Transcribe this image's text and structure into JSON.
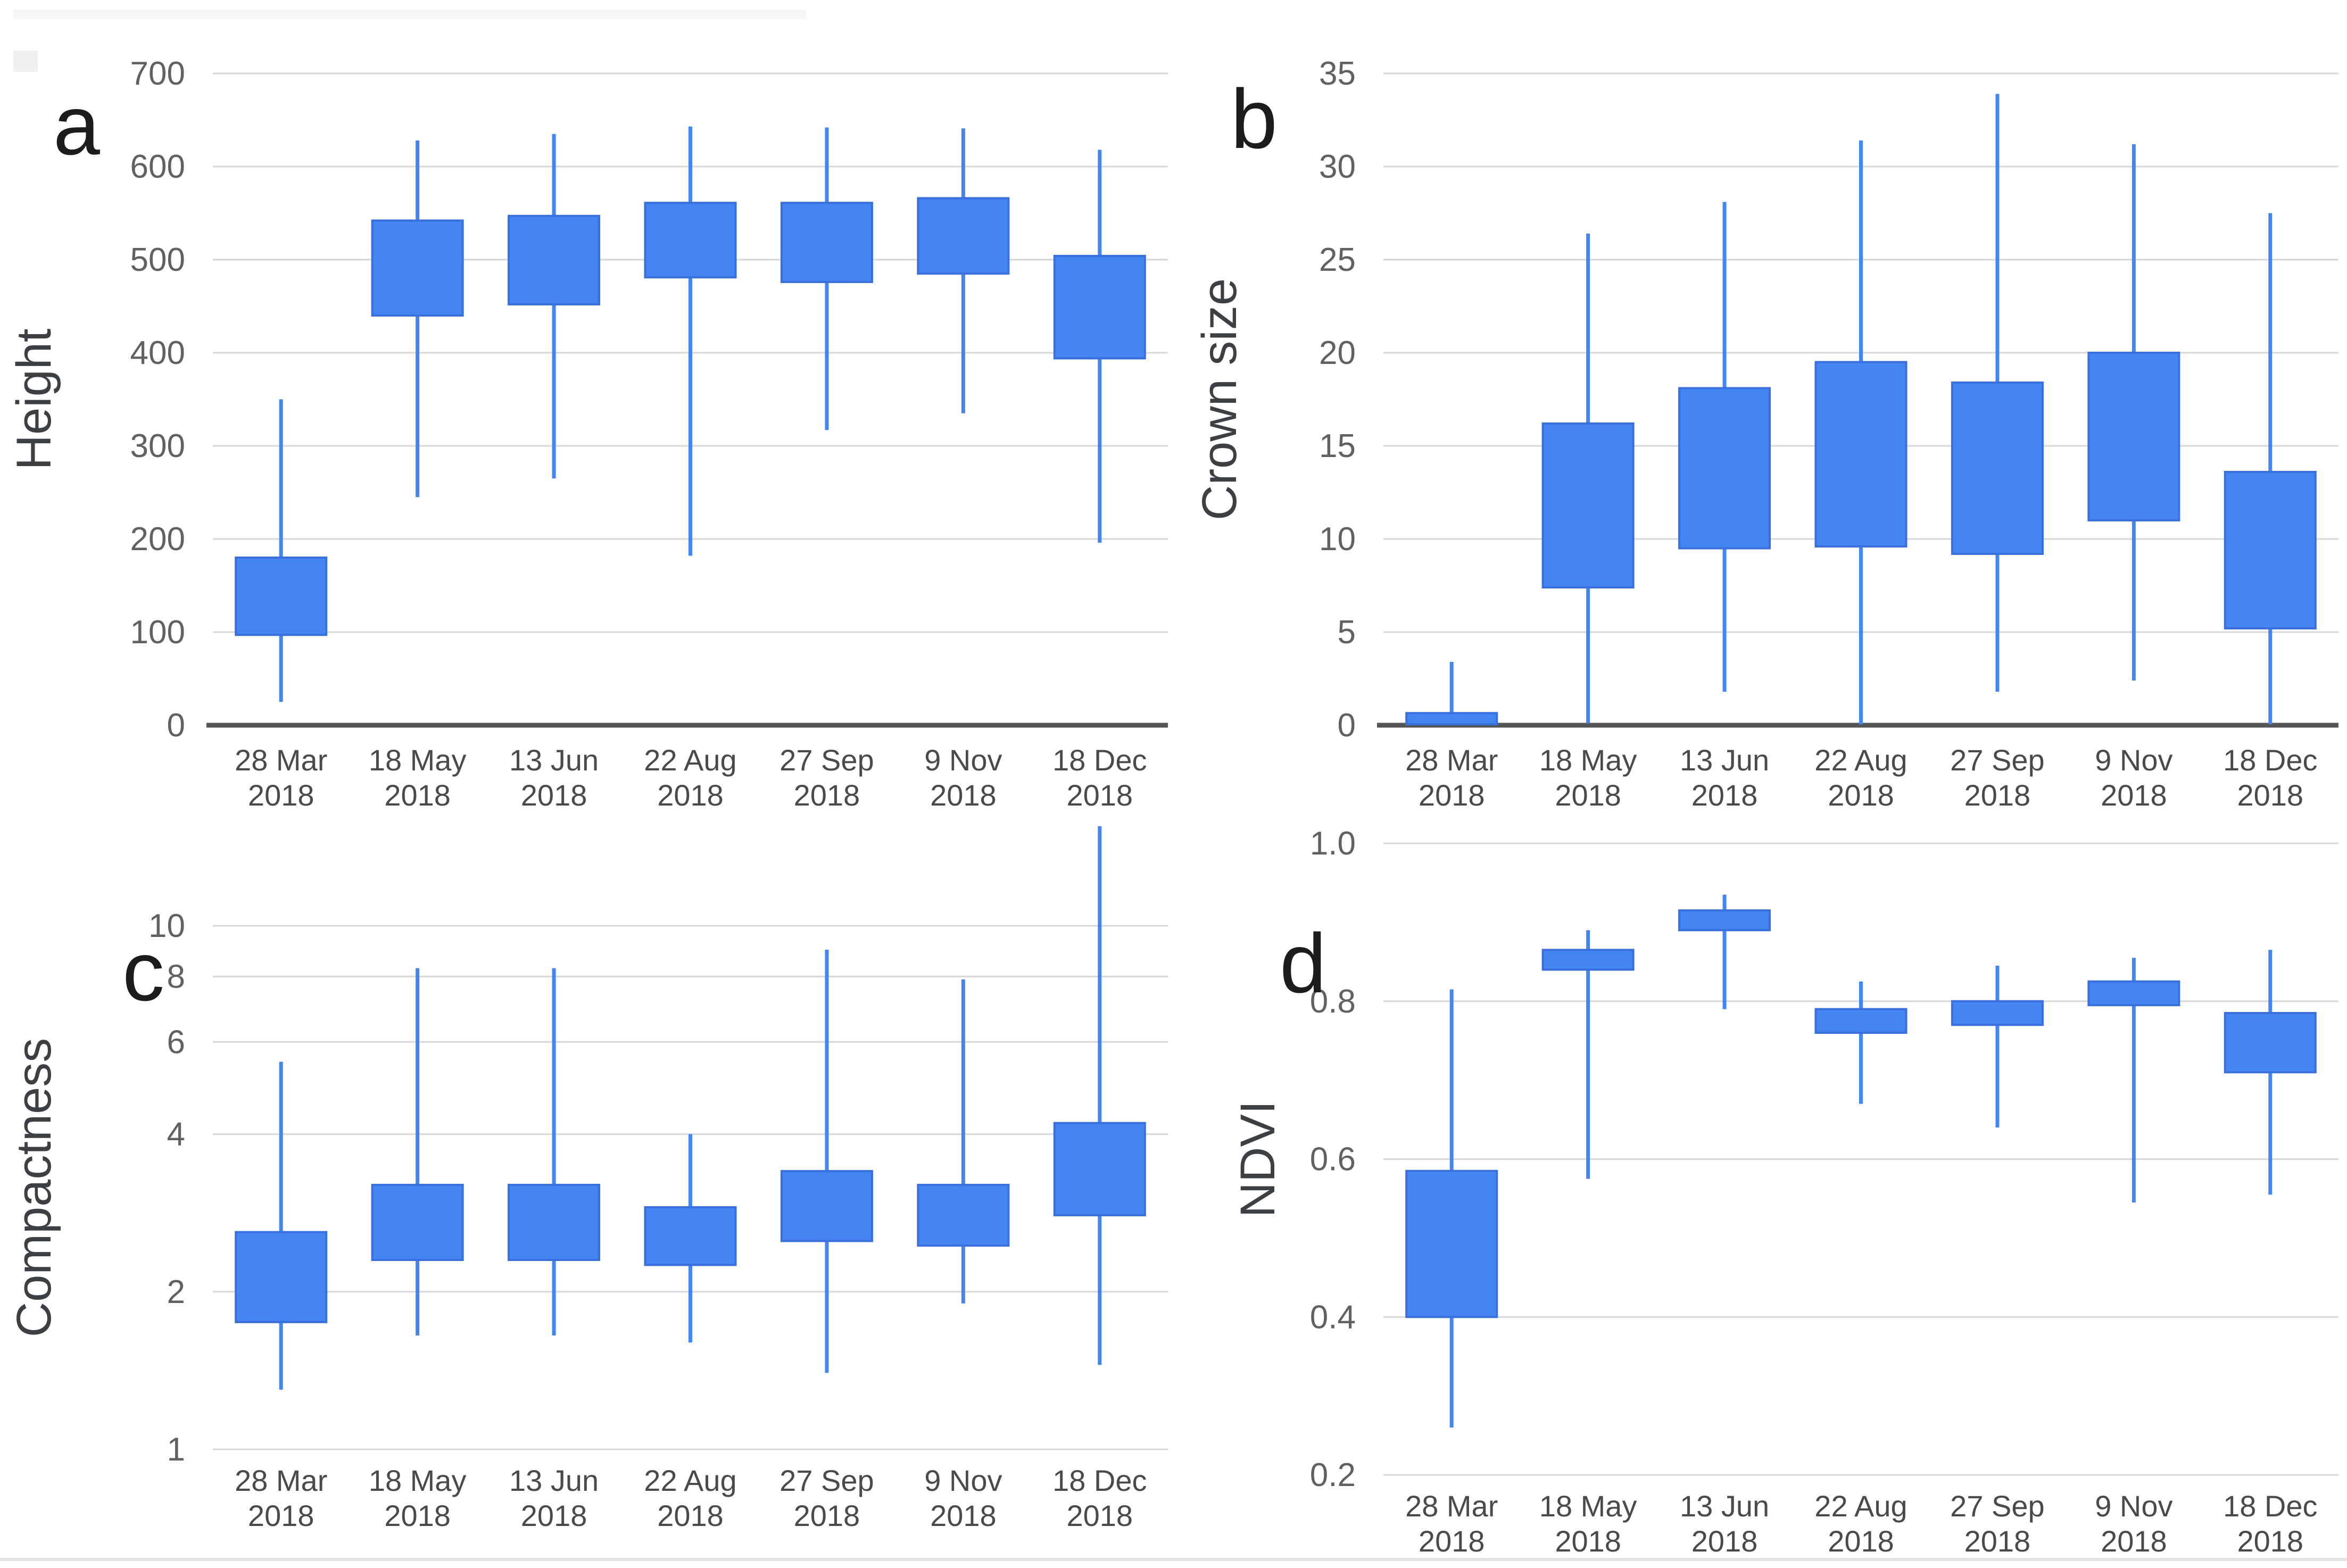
{
  "figure": {
    "background": "#ffffff",
    "box_fill": "#4484f3",
    "box_stroke": "#3a70dd",
    "whisker_color": "#4285f4",
    "gridline_color": "#d6d8da",
    "axis_line_color": "#555555",
    "tick_label_color": "#616161",
    "date_label_color": "#4a4a4a",
    "axis_title_color": "#3c4043",
    "panel_letter_color": "#1c1c1c"
  },
  "categories": [
    [
      "28 Mar",
      "2018"
    ],
    [
      "18 May",
      "2018"
    ],
    [
      "13 Jun",
      "2018"
    ],
    [
      "22 Aug",
      "2018"
    ],
    [
      "27 Sep",
      "2018"
    ],
    [
      "9 Nov",
      "2018"
    ],
    [
      "18 Dec",
      "2018"
    ]
  ],
  "chart_data": [
    {
      "id": "a",
      "type": "candlestick-boxplot",
      "panel_letter": "a",
      "ylabel": "Height",
      "scale": "linear",
      "ylim": [
        0,
        700
      ],
      "yticks": [
        0,
        100,
        200,
        300,
        400,
        500,
        600,
        700
      ],
      "ytick_labels": [
        "0",
        "100",
        "200",
        "300",
        "400",
        "500",
        "600",
        "700"
      ],
      "grid": true,
      "dark_baseline": true,
      "x": [
        "28 Mar 2018",
        "18 May 2018",
        "13 Jun 2018",
        "22 Aug 2018",
        "27 Sep 2018",
        "9 Nov 2018",
        "18 Dec 2018"
      ],
      "series": [
        {
          "name": "28 Mar 2018",
          "low": 25,
          "q1": 97,
          "q3": 180,
          "high": 350
        },
        {
          "name": "18 May 2018",
          "low": 245,
          "q1": 440,
          "q3": 542,
          "high": 628
        },
        {
          "name": "13 Jun 2018",
          "low": 265,
          "q1": 452,
          "q3": 547,
          "high": 635
        },
        {
          "name": "22 Aug 2018",
          "low": 182,
          "q1": 481,
          "q3": 561,
          "high": 643
        },
        {
          "name": "27 Sep 2018",
          "low": 317,
          "q1": 476,
          "q3": 561,
          "high": 642
        },
        {
          "name": "9 Nov 2018",
          "low": 335,
          "q1": 485,
          "q3": 566,
          "high": 641
        },
        {
          "name": "18 Dec 2018",
          "low": 196,
          "q1": 394,
          "q3": 504,
          "high": 618
        }
      ]
    },
    {
      "id": "b",
      "type": "candlestick-boxplot",
      "panel_letter": "b",
      "ylabel": "Crown size",
      "scale": "linear",
      "ylim": [
        0,
        35
      ],
      "yticks": [
        0,
        5,
        10,
        15,
        20,
        25,
        30,
        35
      ],
      "ytick_labels": [
        "0",
        "5",
        "10",
        "15",
        "20",
        "25",
        "30",
        "35"
      ],
      "grid": true,
      "dark_baseline": true,
      "x": [
        "28 Mar 2018",
        "18 May 2018",
        "13 Jun 2018",
        "22 Aug 2018",
        "27 Sep 2018",
        "9 Nov 2018",
        "18 Dec 2018"
      ],
      "series": [
        {
          "name": "28 Mar 2018",
          "low": 0,
          "q1": 0.05,
          "q3": 0.65,
          "high": 3.4
        },
        {
          "name": "18 May 2018",
          "low": 0.1,
          "q1": 7.4,
          "q3": 16.2,
          "high": 26.4
        },
        {
          "name": "13 Jun 2018",
          "low": 1.8,
          "q1": 9.5,
          "q3": 18.1,
          "high": 28.1
        },
        {
          "name": "22 Aug 2018",
          "low": 0.05,
          "q1": 9.6,
          "q3": 19.5,
          "high": 31.4
        },
        {
          "name": "27 Sep 2018",
          "low": 1.8,
          "q1": 9.2,
          "q3": 18.4,
          "high": 33.9
        },
        {
          "name": "9 Nov 2018",
          "low": 2.4,
          "q1": 11.0,
          "q3": 20.0,
          "high": 31.2
        },
        {
          "name": "18 Dec 2018",
          "low": 0.05,
          "q1": 5.2,
          "q3": 13.6,
          "high": 27.5
        }
      ]
    },
    {
      "id": "c",
      "type": "candlestick-boxplot",
      "panel_letter": "c",
      "ylabel": "Compactness",
      "scale": "log",
      "ylim": [
        1,
        10
      ],
      "yticks": [
        1,
        2,
        4,
        6,
        8,
        10
      ],
      "ytick_labels": [
        "1",
        "2",
        "4",
        "6",
        "8",
        "10"
      ],
      "grid": true,
      "dark_baseline": false,
      "x": [
        "28 Mar 2018",
        "18 May 2018",
        "13 Jun 2018",
        "22 Aug 2018",
        "27 Sep 2018",
        "9 Nov 2018",
        "18 Dec 2018"
      ],
      "series": [
        {
          "name": "28 Mar 2018",
          "low": 1.3,
          "q1": 1.75,
          "q3": 2.6,
          "high": 5.5
        },
        {
          "name": "18 May 2018",
          "low": 1.65,
          "q1": 2.3,
          "q3": 3.2,
          "high": 8.3
        },
        {
          "name": "13 Jun 2018",
          "low": 1.65,
          "q1": 2.3,
          "q3": 3.2,
          "high": 8.3
        },
        {
          "name": "22 Aug 2018",
          "low": 1.6,
          "q1": 2.25,
          "q3": 2.9,
          "high": 4.0
        },
        {
          "name": "27 Sep 2018",
          "low": 1.4,
          "q1": 2.5,
          "q3": 3.4,
          "high": 9.0
        },
        {
          "name": "9 Nov 2018",
          "low": 1.9,
          "q1": 2.45,
          "q3": 3.2,
          "high": 7.9
        },
        {
          "name": "18 Dec 2018",
          "low": 1.45,
          "q1": 2.8,
          "q3": 4.2,
          "high": 15.5
        }
      ]
    },
    {
      "id": "d",
      "type": "candlestick-boxplot",
      "panel_letter": "d",
      "ylabel": "NDVI",
      "scale": "linear",
      "ylim": [
        0.2,
        1.0
      ],
      "yticks": [
        0.2,
        0.4,
        0.6,
        0.8,
        1.0
      ],
      "ytick_labels": [
        "0.2",
        "0.4",
        "0.6",
        "0.8",
        "1.0"
      ],
      "grid": true,
      "dark_baseline": false,
      "x": [
        "28 Mar 2018",
        "18 May 2018",
        "13 Jun 2018",
        "22 Aug 2018",
        "27 Sep 2018",
        "9 Nov 2018",
        "18 Dec 2018"
      ],
      "series": [
        {
          "name": "28 Mar 2018",
          "low": 0.26,
          "q1": 0.4,
          "q3": 0.585,
          "high": 0.815
        },
        {
          "name": "18 May 2018",
          "low": 0.575,
          "q1": 0.84,
          "q3": 0.865,
          "high": 0.89
        },
        {
          "name": "13 Jun 2018",
          "low": 0.79,
          "q1": 0.89,
          "q3": 0.915,
          "high": 0.935
        },
        {
          "name": "22 Aug 2018",
          "low": 0.67,
          "q1": 0.76,
          "q3": 0.79,
          "high": 0.825
        },
        {
          "name": "27 Sep 2018",
          "low": 0.64,
          "q1": 0.77,
          "q3": 0.8,
          "high": 0.845
        },
        {
          "name": "9 Nov 2018",
          "low": 0.545,
          "q1": 0.795,
          "q3": 0.825,
          "high": 0.855
        },
        {
          "name": "18 Dec 2018",
          "low": 0.555,
          "q1": 0.71,
          "q3": 0.785,
          "high": 0.865
        }
      ]
    }
  ]
}
